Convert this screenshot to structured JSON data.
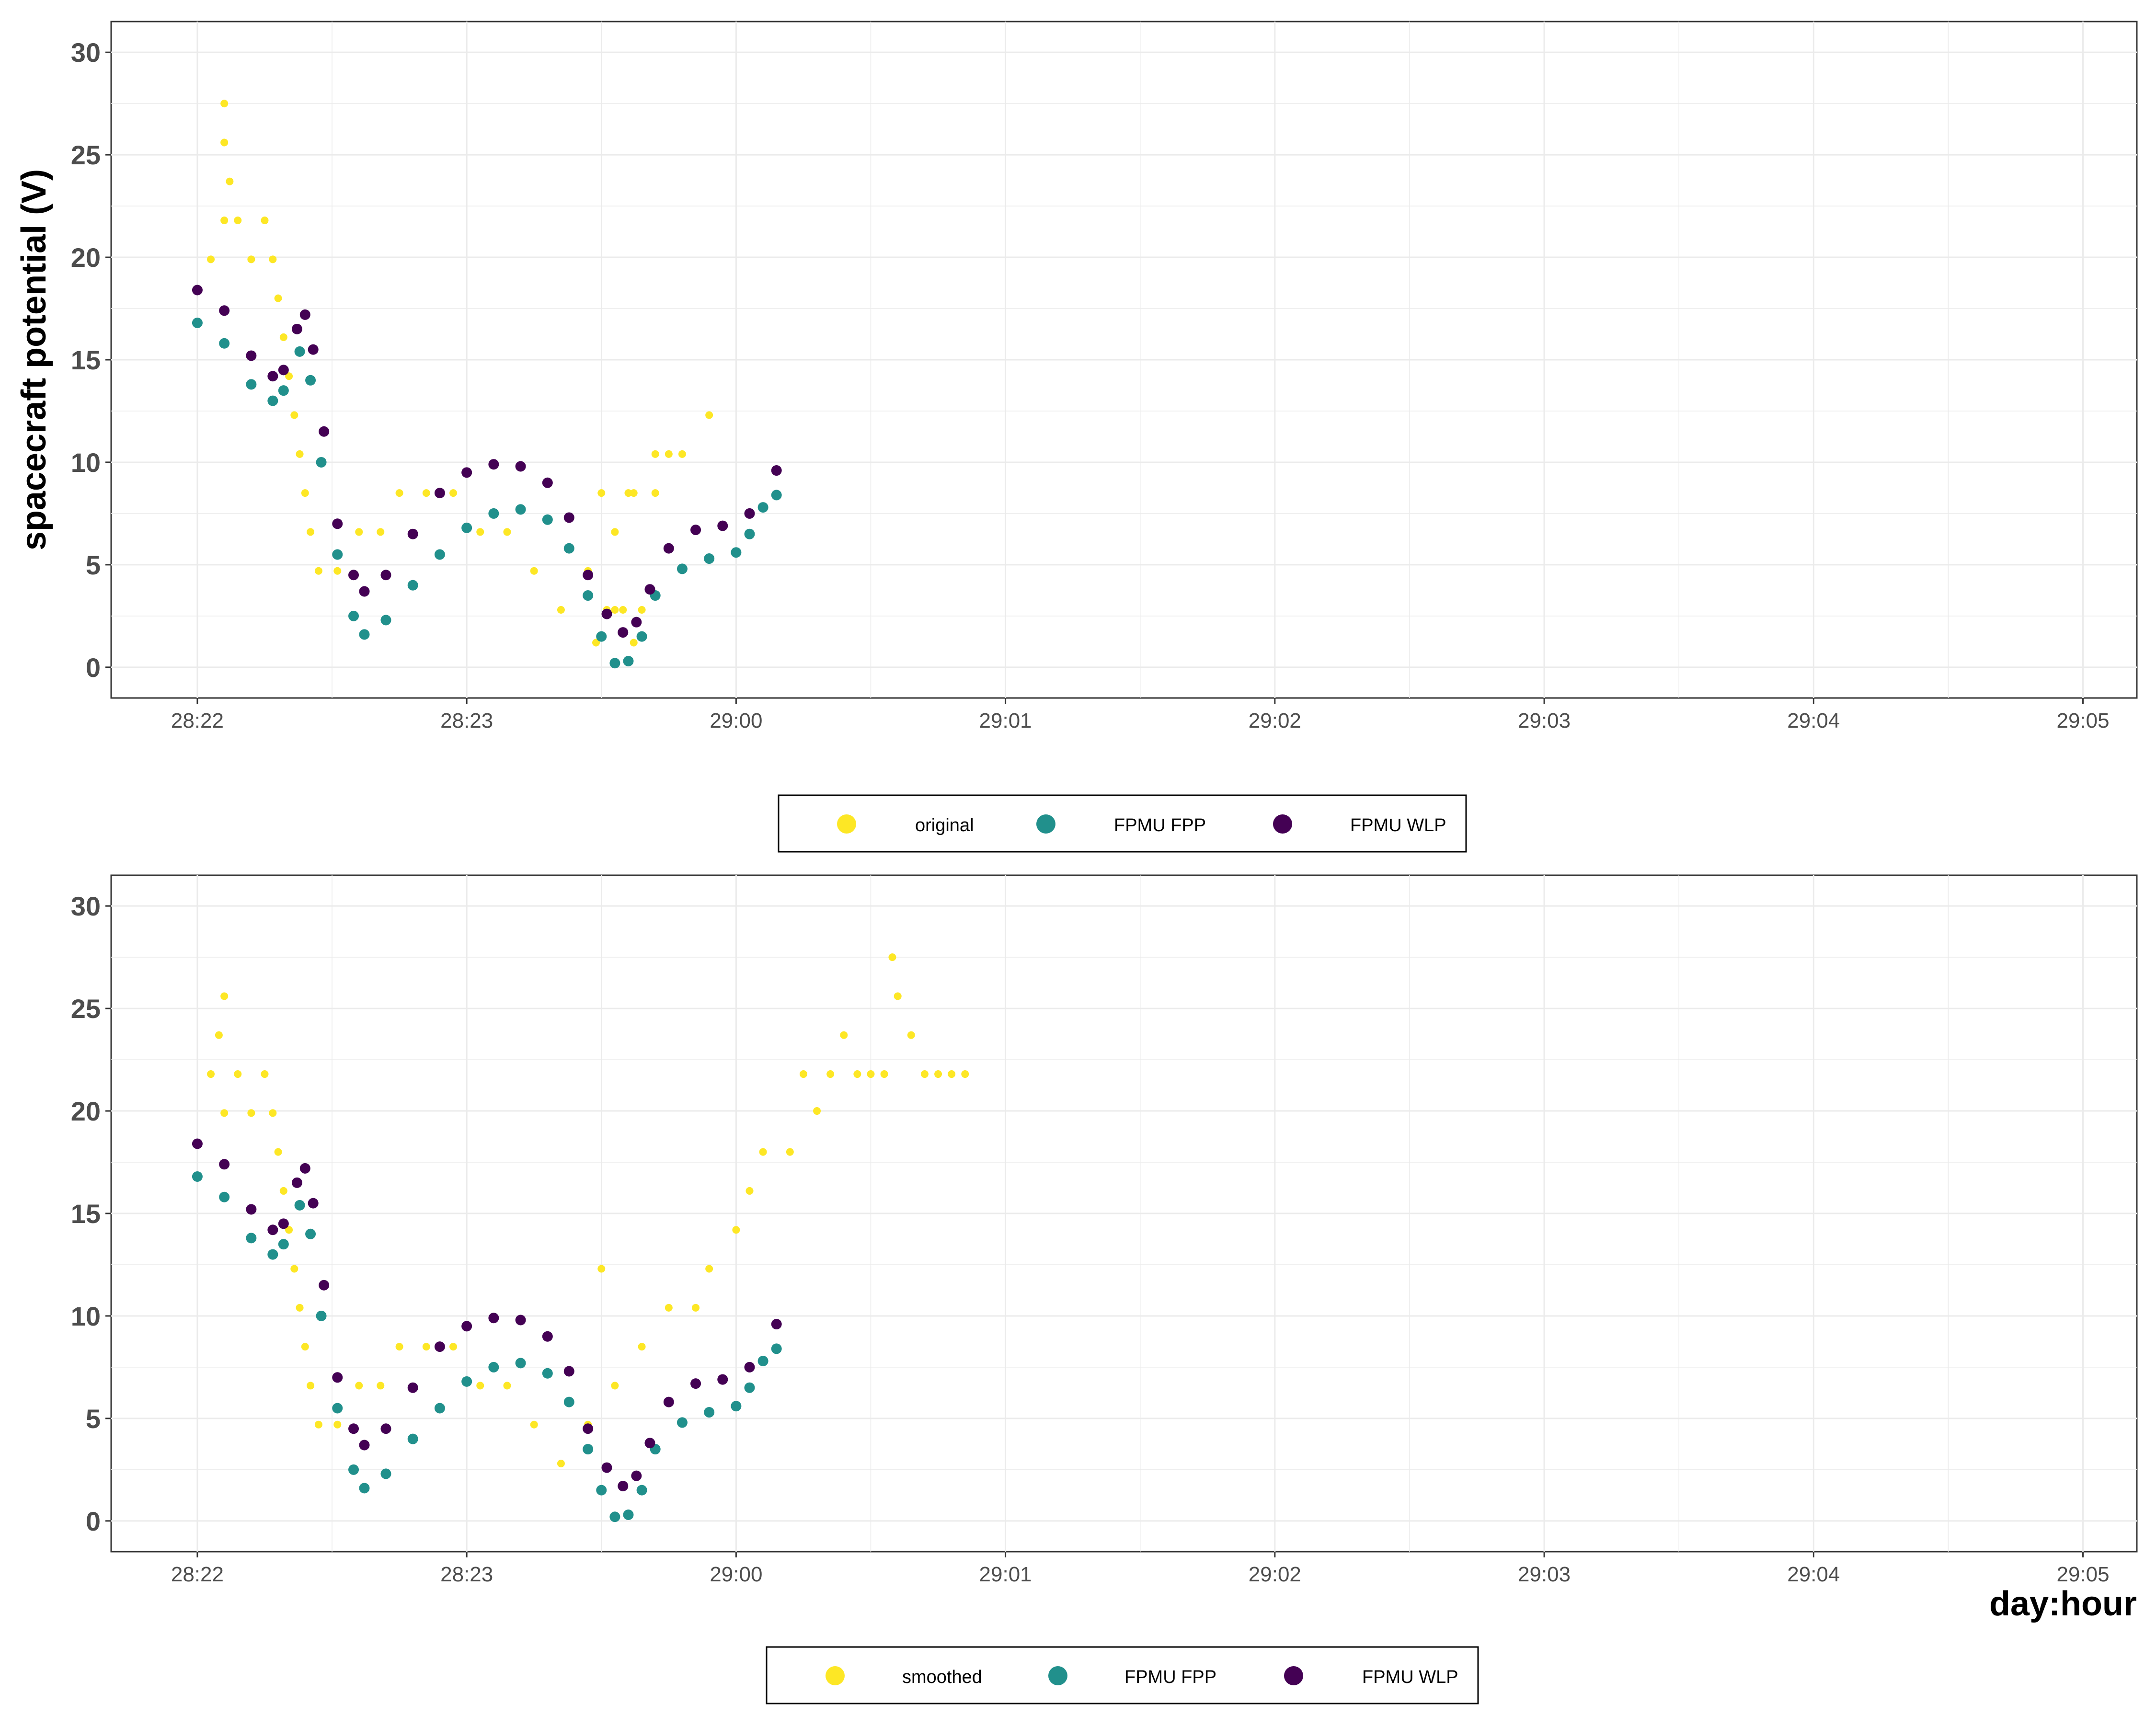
{
  "y_axis_title": "spacecraft potential (V)",
  "x_axis_title": "day:hour",
  "colors": {
    "original": "#FDE725",
    "fpp": "#21908C",
    "wlp": "#440154",
    "grid": "#EBEBEB",
    "border": "#333333"
  },
  "chart_data": [
    {
      "type": "scatter",
      "panel": "top",
      "xlabel": "",
      "ylabel": "spacecraft potential (V)",
      "x_unit": "hours since 28:22",
      "xlim": [
        -0.32,
        7.2
      ],
      "ylim": [
        -1.5,
        31.5
      ],
      "x_ticks": [
        0,
        1,
        2,
        3,
        4,
        5,
        6,
        7
      ],
      "x_tick_labels": [
        "28:22",
        "28:23",
        "29:00",
        "29:01",
        "29:02",
        "29:03",
        "29:04",
        "29:05"
      ],
      "y_ticks": [
        0,
        5,
        10,
        15,
        20,
        25,
        30
      ],
      "y_tick_labels": [
        "0",
        "5",
        "10",
        "15",
        "20",
        "25",
        "30"
      ],
      "grid": true,
      "legend": {
        "position": "bottom",
        "entries": [
          "original",
          "FPMU FPP",
          "FPMU WLP"
        ]
      },
      "series": [
        {
          "name": "original",
          "points": [
            [
              0.05,
              19.9
            ],
            [
              0.1,
              21.8
            ],
            [
              0.1,
              27.5
            ],
            [
              0.1,
              25.6
            ],
            [
              0.12,
              23.7
            ],
            [
              0.15,
              21.8
            ],
            [
              0.2,
              19.9
            ],
            [
              0.25,
              21.8
            ],
            [
              0.28,
              19.9
            ],
            [
              0.3,
              18.0
            ],
            [
              0.32,
              16.1
            ],
            [
              0.34,
              14.2
            ],
            [
              0.36,
              12.3
            ],
            [
              0.38,
              10.4
            ],
            [
              0.4,
              8.5
            ],
            [
              0.42,
              6.6
            ],
            [
              0.45,
              4.7
            ],
            [
              0.52,
              4.7
            ],
            [
              0.6,
              6.6
            ],
            [
              0.68,
              6.6
            ],
            [
              0.75,
              8.5
            ],
            [
              0.85,
              8.5
            ],
            [
              0.95,
              8.5
            ],
            [
              1.05,
              6.6
            ],
            [
              1.15,
              6.6
            ],
            [
              1.25,
              4.7
            ],
            [
              1.35,
              2.8
            ],
            [
              1.45,
              4.7
            ],
            [
              1.48,
              1.2
            ],
            [
              1.55,
              6.6
            ],
            [
              1.6,
              8.5
            ],
            [
              1.7,
              10.4
            ],
            [
              1.8,
              10.4
            ],
            [
              1.9,
              12.3
            ],
            [
              1.55,
              2.8
            ],
            [
              1.62,
              1.2
            ],
            [
              1.7,
              8.5
            ],
            [
              1.65,
              2.8
            ],
            [
              1.52,
              2.8
            ],
            [
              1.58,
              2.8
            ],
            [
              1.62,
              8.5
            ],
            [
              1.75,
              10.4
            ],
            [
              1.5,
              8.5
            ]
          ]
        },
        {
          "name": "FPMU FPP",
          "points": [
            [
              0.0,
              16.8
            ],
            [
              0.1,
              15.8
            ],
            [
              0.2,
              13.8
            ],
            [
              0.28,
              13.0
            ],
            [
              0.32,
              13.5
            ],
            [
              0.38,
              15.4
            ],
            [
              0.42,
              14.0
            ],
            [
              0.46,
              10.0
            ],
            [
              0.52,
              5.5
            ],
            [
              0.58,
              2.5
            ],
            [
              0.62,
              1.6
            ],
            [
              0.7,
              2.3
            ],
            [
              0.8,
              4.0
            ],
            [
              0.9,
              5.5
            ],
            [
              1.0,
              6.8
            ],
            [
              1.1,
              7.5
            ],
            [
              1.2,
              7.7
            ],
            [
              1.3,
              7.2
            ],
            [
              1.38,
              5.8
            ],
            [
              1.45,
              3.5
            ],
            [
              1.5,
              1.5
            ],
            [
              1.55,
              0.2
            ],
            [
              1.6,
              0.3
            ],
            [
              1.65,
              1.5
            ],
            [
              1.7,
              3.5
            ],
            [
              1.8,
              4.8
            ],
            [
              1.9,
              5.3
            ],
            [
              2.0,
              5.6
            ],
            [
              2.05,
              6.5
            ],
            [
              2.1,
              7.8
            ],
            [
              2.15,
              8.4
            ]
          ]
        },
        {
          "name": "FPMU WLP",
          "points": [
            [
              0.0,
              18.4
            ],
            [
              0.1,
              17.4
            ],
            [
              0.2,
              15.2
            ],
            [
              0.28,
              14.2
            ],
            [
              0.32,
              14.5
            ],
            [
              0.37,
              16.5
            ],
            [
              0.4,
              17.2
            ],
            [
              0.43,
              15.5
            ],
            [
              0.47,
              11.5
            ],
            [
              0.52,
              7.0
            ],
            [
              0.58,
              4.5
            ],
            [
              0.62,
              3.7
            ],
            [
              0.7,
              4.5
            ],
            [
              0.8,
              6.5
            ],
            [
              0.9,
              8.5
            ],
            [
              1.0,
              9.5
            ],
            [
              1.1,
              9.9
            ],
            [
              1.2,
              9.8
            ],
            [
              1.3,
              9.0
            ],
            [
              1.38,
              7.3
            ],
            [
              1.45,
              4.5
            ],
            [
              1.52,
              2.6
            ],
            [
              1.58,
              1.7
            ],
            [
              1.63,
              2.2
            ],
            [
              1.68,
              3.8
            ],
            [
              1.75,
              5.8
            ],
            [
              1.85,
              6.7
            ],
            [
              1.95,
              6.9
            ],
            [
              2.05,
              7.5
            ],
            [
              2.15,
              9.6
            ]
          ]
        }
      ]
    },
    {
      "type": "scatter",
      "panel": "bottom",
      "xlabel": "day:hour",
      "ylabel": "",
      "x_unit": "hours since 28:22",
      "xlim": [
        -0.32,
        7.2
      ],
      "ylim": [
        -1.5,
        31.5
      ],
      "x_ticks": [
        0,
        1,
        2,
        3,
        4,
        5,
        6,
        7
      ],
      "x_tick_labels": [
        "28:22",
        "28:23",
        "29:00",
        "29:01",
        "29:02",
        "29:03",
        "29:04",
        "29:05"
      ],
      "y_ticks": [
        0,
        5,
        10,
        15,
        20,
        25,
        30
      ],
      "y_tick_labels": [
        "0",
        "5",
        "10",
        "15",
        "20",
        "25",
        "30"
      ],
      "grid": true,
      "legend": {
        "position": "bottom",
        "entries": [
          "smoothed",
          "FPMU FPP",
          "FPMU WLP"
        ]
      },
      "series": [
        {
          "name": "smoothed",
          "points": [
            [
              0.05,
              21.8
            ],
            [
              0.1,
              19.9
            ],
            [
              0.1,
              25.6
            ],
            [
              0.08,
              23.7
            ],
            [
              0.15,
              21.8
            ],
            [
              0.2,
              19.9
            ],
            [
              0.25,
              21.8
            ],
            [
              0.28,
              19.9
            ],
            [
              0.3,
              18.0
            ],
            [
              0.32,
              16.1
            ],
            [
              0.34,
              14.2
            ],
            [
              0.36,
              12.3
            ],
            [
              0.38,
              10.4
            ],
            [
              0.4,
              8.5
            ],
            [
              0.42,
              6.6
            ],
            [
              0.45,
              4.7
            ],
            [
              0.52,
              4.7
            ],
            [
              0.6,
              6.6
            ],
            [
              0.68,
              6.6
            ],
            [
              0.75,
              8.5
            ],
            [
              0.85,
              8.5
            ],
            [
              0.95,
              8.5
            ],
            [
              1.05,
              6.6
            ],
            [
              1.15,
              6.6
            ],
            [
              1.25,
              4.7
            ],
            [
              1.35,
              2.8
            ],
            [
              1.45,
              4.7
            ],
            [
              1.5,
              12.3
            ],
            [
              1.55,
              6.6
            ],
            [
              1.65,
              8.5
            ],
            [
              1.75,
              10.4
            ],
            [
              1.85,
              10.4
            ],
            [
              1.9,
              12.3
            ],
            [
              2.0,
              14.2
            ],
            [
              2.05,
              16.1
            ],
            [
              2.1,
              18.0
            ],
            [
              2.2,
              18.0
            ],
            [
              2.25,
              21.8
            ],
            [
              2.3,
              20.0
            ],
            [
              2.35,
              21.8
            ],
            [
              2.4,
              23.7
            ],
            [
              2.45,
              21.8
            ],
            [
              2.5,
              21.8
            ],
            [
              2.55,
              21.8
            ],
            [
              2.58,
              27.5
            ],
            [
              2.6,
              25.6
            ],
            [
              2.65,
              23.7
            ],
            [
              2.7,
              21.8
            ],
            [
              2.75,
              21.8
            ],
            [
              2.8,
              21.8
            ],
            [
              2.85,
              21.8
            ]
          ]
        },
        {
          "name": "FPMU FPP",
          "points": [
            [
              0.0,
              16.8
            ],
            [
              0.1,
              15.8
            ],
            [
              0.2,
              13.8
            ],
            [
              0.28,
              13.0
            ],
            [
              0.32,
              13.5
            ],
            [
              0.38,
              15.4
            ],
            [
              0.42,
              14.0
            ],
            [
              0.46,
              10.0
            ],
            [
              0.52,
              5.5
            ],
            [
              0.58,
              2.5
            ],
            [
              0.62,
              1.6
            ],
            [
              0.7,
              2.3
            ],
            [
              0.8,
              4.0
            ],
            [
              0.9,
              5.5
            ],
            [
              1.0,
              6.8
            ],
            [
              1.1,
              7.5
            ],
            [
              1.2,
              7.7
            ],
            [
              1.3,
              7.2
            ],
            [
              1.38,
              5.8
            ],
            [
              1.45,
              3.5
            ],
            [
              1.5,
              1.5
            ],
            [
              1.55,
              0.2
            ],
            [
              1.6,
              0.3
            ],
            [
              1.65,
              1.5
            ],
            [
              1.7,
              3.5
            ],
            [
              1.8,
              4.8
            ],
            [
              1.9,
              5.3
            ],
            [
              2.0,
              5.6
            ],
            [
              2.05,
              6.5
            ],
            [
              2.1,
              7.8
            ],
            [
              2.15,
              8.4
            ]
          ]
        },
        {
          "name": "FPMU WLP",
          "points": [
            [
              0.0,
              18.4
            ],
            [
              0.1,
              17.4
            ],
            [
              0.2,
              15.2
            ],
            [
              0.28,
              14.2
            ],
            [
              0.32,
              14.5
            ],
            [
              0.37,
              16.5
            ],
            [
              0.4,
              17.2
            ],
            [
              0.43,
              15.5
            ],
            [
              0.47,
              11.5
            ],
            [
              0.52,
              7.0
            ],
            [
              0.58,
              4.5
            ],
            [
              0.62,
              3.7
            ],
            [
              0.7,
              4.5
            ],
            [
              0.8,
              6.5
            ],
            [
              0.9,
              8.5
            ],
            [
              1.0,
              9.5
            ],
            [
              1.1,
              9.9
            ],
            [
              1.2,
              9.8
            ],
            [
              1.3,
              9.0
            ],
            [
              1.38,
              7.3
            ],
            [
              1.45,
              4.5
            ],
            [
              1.52,
              2.6
            ],
            [
              1.58,
              1.7
            ],
            [
              1.63,
              2.2
            ],
            [
              1.68,
              3.8
            ],
            [
              1.75,
              5.8
            ],
            [
              1.85,
              6.7
            ],
            [
              1.95,
              6.9
            ],
            [
              2.05,
              7.5
            ],
            [
              2.15,
              9.6
            ]
          ]
        }
      ]
    }
  ]
}
